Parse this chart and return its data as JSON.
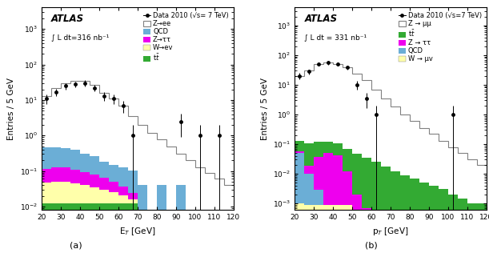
{
  "panel_a": {
    "title": "ATLAS",
    "lumi": "∫ L dt=316 nb⁻¹",
    "xlabel": "E$_{T}$ [GeV]",
    "ylabel": "Entries / 5 GeV",
    "xlim": [
      20,
      120
    ],
    "ylim_log": [
      0.008,
      4000
    ],
    "bins": [
      20,
      25,
      30,
      35,
      40,
      45,
      50,
      55,
      60,
      65,
      70,
      75,
      80,
      85,
      90,
      95,
      100,
      105,
      110,
      115,
      120
    ],
    "data_values": [
      11,
      17,
      25,
      28,
      30,
      22,
      13,
      11,
      7,
      1.0,
      0.0,
      0.0,
      0.0,
      0.0,
      2.5,
      0.0,
      1.0,
      0.0,
      1.0,
      0.0
    ],
    "data_errors": [
      3.3,
      4.1,
      5.0,
      5.3,
      5.5,
      4.7,
      3.6,
      3.3,
      2.6,
      1.0,
      0.0,
      0.0,
      0.0,
      0.0,
      1.6,
      0.0,
      1.0,
      0.0,
      1.0,
      0.0
    ],
    "Zee_values": [
      13,
      22,
      30,
      34,
      35,
      26,
      16,
      11,
      7,
      3.5,
      2.0,
      1.2,
      0.8,
      0.5,
      0.3,
      0.2,
      0.13,
      0.09,
      0.06,
      0.04
    ],
    "QCD_values": [
      0.35,
      0.35,
      0.32,
      0.28,
      0.22,
      0.18,
      0.12,
      0.1,
      0.09,
      0.08,
      0.04,
      0.0,
      0.04,
      0.0,
      0.04,
      0.0,
      0.0,
      0.0,
      0.0,
      0.0
    ],
    "Ztautau_values": [
      0.065,
      0.075,
      0.075,
      0.065,
      0.055,
      0.045,
      0.035,
      0.025,
      0.015,
      0.008,
      0.0,
      0.0,
      0.0,
      0.0,
      0.0,
      0.0,
      0.0,
      0.0,
      0.0,
      0.0
    ],
    "Wev_values": [
      0.035,
      0.038,
      0.038,
      0.033,
      0.028,
      0.022,
      0.018,
      0.013,
      0.009,
      0.004,
      0.0,
      0.0,
      0.0,
      0.0,
      0.0,
      0.0,
      0.0,
      0.0,
      0.0,
      0.0
    ],
    "ttbar_values": [
      0.012,
      0.012,
      0.012,
      0.012,
      0.012,
      0.012,
      0.012,
      0.012,
      0.012,
      0.012,
      0.0,
      0.0,
      0.0,
      0.0,
      0.0,
      0.0,
      0.0,
      0.0,
      0.0,
      0.0
    ],
    "colors": {
      "Zee": "white",
      "QCD": "#6BAED6",
      "Ztautau": "#EE00EE",
      "Wev": "#FFFFAA",
      "ttbar": "#33AA33"
    },
    "legend_labels": [
      "Data 2010 (√s= 7 TeV)",
      "Z→ee",
      "QCD",
      "Z→ττ",
      "W→ev",
      "t$\\bar{t}$"
    ]
  },
  "panel_b": {
    "title": "ATLAS",
    "lumi": "∫ L dt = 331 nb⁻¹",
    "xlabel": "p$_{T}$ [GeV]",
    "ylabel": "Entries / 5 GeV",
    "xlim": [
      20,
      120
    ],
    "ylim_log": [
      0.0006,
      4000
    ],
    "bins": [
      20,
      25,
      30,
      35,
      40,
      45,
      50,
      55,
      60,
      65,
      70,
      75,
      80,
      85,
      90,
      95,
      100,
      105,
      110,
      115,
      120
    ],
    "data_values": [
      20,
      28,
      50,
      55,
      50,
      38,
      10,
      3.5,
      1.0,
      0.0,
      0.0,
      0.0,
      0.0,
      0.0,
      0.0,
      0.0,
      1.0,
      0.0,
      0.0,
      0.0
    ],
    "data_errors": [
      4.5,
      5.3,
      7.1,
      7.4,
      7.1,
      6.2,
      3.2,
      1.9,
      1.0,
      0.0,
      0.0,
      0.0,
      0.0,
      0.0,
      0.0,
      0.0,
      1.0,
      0.0,
      0.0,
      0.0
    ],
    "Zmumu_values": [
      20,
      30,
      50,
      56,
      50,
      38,
      24,
      14,
      7,
      3.5,
      1.8,
      1.0,
      0.6,
      0.35,
      0.22,
      0.13,
      0.08,
      0.05,
      0.03,
      0.02
    ],
    "ttbar_values": [
      0.075,
      0.085,
      0.085,
      0.075,
      0.065,
      0.055,
      0.045,
      0.035,
      0.025,
      0.018,
      0.012,
      0.009,
      0.007,
      0.005,
      0.004,
      0.003,
      0.002,
      0.0015,
      0.001,
      0.001
    ],
    "Ztautau_values": [
      0.007,
      0.009,
      0.035,
      0.048,
      0.042,
      0.011,
      0.002,
      0.0007,
      0.0003,
      0.0,
      0.0,
      0.0,
      0.0,
      0.0,
      0.0,
      0.0,
      0.0,
      0.0,
      0.0,
      0.0
    ],
    "QCD_values": [
      0.048,
      0.009,
      0.002,
      0.0,
      0.0,
      0.0,
      0.0,
      0.0,
      0.0,
      0.0,
      0.0,
      0.0,
      0.0,
      0.0,
      0.0,
      0.0,
      0.0,
      0.0,
      0.0,
      0.0
    ],
    "Wmunu_values": [
      0.001,
      0.0009,
      0.0009,
      0.0009,
      0.0009,
      0.0009,
      0.0,
      0.0,
      0.0,
      0.0,
      0.0,
      0.0,
      0.0,
      0.0,
      0.0,
      0.0,
      0.0,
      0.0,
      0.0,
      0.0
    ],
    "colors": {
      "Zmumu": "white",
      "ttbar": "#33AA33",
      "Ztautau": "#EE00EE",
      "QCD": "#6BAED6",
      "Wmunu": "#FFFFAA"
    },
    "legend_labels": [
      "Data 2010 (√s=7 TeV)",
      "Z → μμ",
      "t$\\bar{t}$",
      "Z → ττ",
      "QCD",
      "W → μv"
    ]
  },
  "fig_label_a": "(a)",
  "fig_label_b": "(b)"
}
